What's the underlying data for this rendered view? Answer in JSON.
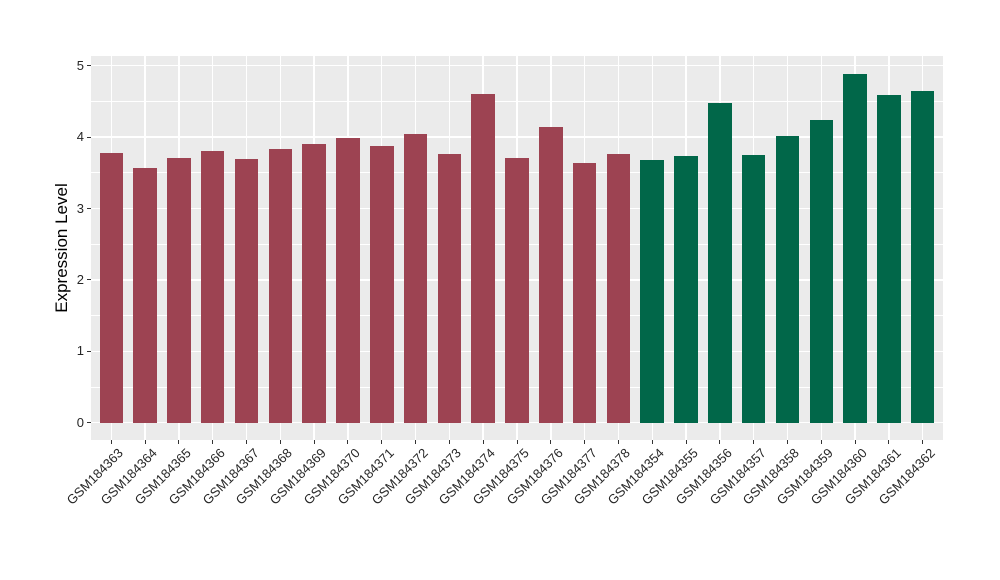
{
  "chart_data": {
    "type": "bar",
    "title": "",
    "xlabel": "",
    "ylabel": "Expression Level",
    "yticks": [
      0,
      1,
      2,
      3,
      4,
      5
    ],
    "yticks_minor": [
      0.5,
      1.5,
      2.5,
      3.5,
      4.5
    ],
    "ylim": [
      0,
      5.15
    ],
    "grid": true,
    "legend": "none",
    "x_tick_label_rotation": 45,
    "categories": [
      "GSM184363",
      "GSM184364",
      "GSM184365",
      "GSM184366",
      "GSM184367",
      "GSM184368",
      "GSM184369",
      "GSM184370",
      "GSM184371",
      "GSM184372",
      "GSM184373",
      "GSM184374",
      "GSM184375",
      "GSM184376",
      "GSM184377",
      "GSM184378",
      "GSM184354",
      "GSM184355",
      "GSM184356",
      "GSM184357",
      "GSM184358",
      "GSM184359",
      "GSM184360",
      "GSM184361",
      "GSM184362"
    ],
    "values": [
      3.78,
      3.57,
      3.71,
      3.81,
      3.7,
      3.83,
      3.9,
      3.99,
      3.88,
      4.04,
      3.77,
      4.61,
      3.71,
      4.14,
      3.64,
      3.77,
      3.68,
      3.73,
      4.48,
      3.75,
      4.02,
      4.24,
      4.88,
      4.59,
      4.65
    ],
    "groups": [
      "A",
      "A",
      "A",
      "A",
      "A",
      "A",
      "A",
      "A",
      "A",
      "A",
      "A",
      "A",
      "A",
      "A",
      "A",
      "A",
      "B",
      "B",
      "B",
      "B",
      "B",
      "B",
      "B",
      "B",
      "B"
    ],
    "group_colors": {
      "A": "#9D4352",
      "B": "#016749"
    },
    "panel_background": "#EBEBEB",
    "gridline_color": "#FFFFFF"
  }
}
